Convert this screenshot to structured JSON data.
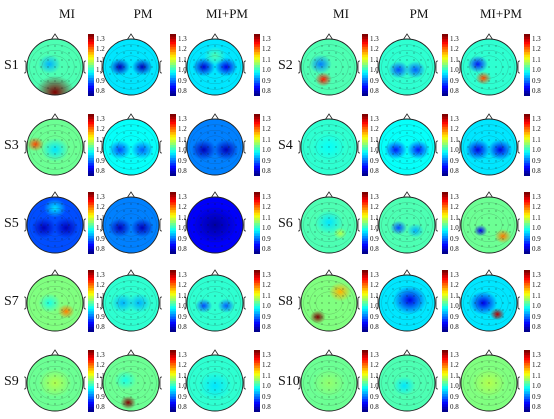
{
  "column_headers": [
    "MI",
    "PM",
    "MI+PM",
    "MI",
    "PM",
    "MI+PM"
  ],
  "colorbar_ticks": [
    "1.3",
    "1.2",
    "1.1",
    "1.0",
    "0.9",
    "0.8"
  ],
  "colormap": [
    "#00008f",
    "#0000ff",
    "#0080ff",
    "#00ffff",
    "#80ff80",
    "#ffff00",
    "#ff8000",
    "#ff0000",
    "#800000"
  ],
  "subjects": [
    {
      "label": "S1",
      "maps": [
        {
          "base": 0.45,
          "blobs": [
            [
              0.5,
              0.95,
              0.35,
              1.0
            ],
            [
              0.4,
              0.45,
              0.2,
              0.3
            ]
          ]
        },
        {
          "base": 0.35,
          "blobs": [
            [
              0.3,
              0.5,
              0.18,
              0.05
            ],
            [
              0.7,
              0.5,
              0.18,
              0.05
            ]
          ]
        },
        {
          "base": 0.35,
          "blobs": [
            [
              0.3,
              0.5,
              0.2,
              0.08
            ],
            [
              0.7,
              0.5,
              0.2,
              0.1
            ],
            [
              0.5,
              0.3,
              0.2,
              0.45
            ]
          ]
        }
      ]
    },
    {
      "label": "S2",
      "maps": [
        {
          "base": 0.45,
          "blobs": [
            [
              0.4,
              0.72,
              0.15,
              0.85
            ],
            [
              0.35,
              0.45,
              0.2,
              0.25
            ]
          ]
        },
        {
          "base": 0.42,
          "blobs": [
            [
              0.35,
              0.55,
              0.18,
              0.2
            ],
            [
              0.65,
              0.55,
              0.18,
              0.22
            ]
          ]
        },
        {
          "base": 0.42,
          "blobs": [
            [
              0.3,
              0.45,
              0.18,
              0.15
            ],
            [
              0.4,
              0.7,
              0.14,
              0.8
            ]
          ]
        }
      ]
    },
    {
      "label": "S3",
      "maps": [
        {
          "base": 0.48,
          "blobs": [
            [
              0.15,
              0.45,
              0.15,
              0.8
            ],
            [
              0.5,
              0.55,
              0.25,
              0.35
            ]
          ]
        },
        {
          "base": 0.38,
          "blobs": [
            [
              0.3,
              0.55,
              0.2,
              0.2
            ],
            [
              0.7,
              0.55,
              0.2,
              0.22
            ]
          ]
        },
        {
          "base": 0.25,
          "blobs": [
            [
              0.3,
              0.55,
              0.22,
              0.05
            ],
            [
              0.7,
              0.55,
              0.22,
              0.05
            ]
          ]
        }
      ]
    },
    {
      "label": "S4",
      "maps": [
        {
          "base": 0.42,
          "blobs": [
            [
              0.5,
              0.5,
              0.3,
              0.38
            ]
          ]
        },
        {
          "base": 0.38,
          "blobs": [
            [
              0.3,
              0.55,
              0.2,
              0.15
            ],
            [
              0.7,
              0.55,
              0.2,
              0.15
            ]
          ]
        },
        {
          "base": 0.35,
          "blobs": [
            [
              0.3,
              0.55,
              0.22,
              0.1
            ],
            [
              0.7,
              0.55,
              0.22,
              0.1
            ]
          ]
        }
      ]
    },
    {
      "label": "S5",
      "maps": [
        {
          "base": 0.2,
          "blobs": [
            [
              0.3,
              0.55,
              0.22,
              0.05
            ],
            [
              0.7,
              0.55,
              0.22,
              0.05
            ],
            [
              0.5,
              0.2,
              0.2,
              0.35
            ]
          ]
        },
        {
          "base": 0.25,
          "blobs": [
            [
              0.3,
              0.55,
              0.2,
              0.05
            ],
            [
              0.7,
              0.55,
              0.2,
              0.05
            ]
          ]
        },
        {
          "base": 0.12,
          "blobs": [
            [
              0.5,
              0.5,
              0.4,
              0.02
            ]
          ]
        }
      ]
    },
    {
      "label": "S6",
      "maps": [
        {
          "base": 0.45,
          "blobs": [
            [
              0.5,
              0.45,
              0.25,
              0.35
            ],
            [
              0.7,
              0.65,
              0.12,
              0.55
            ]
          ]
        },
        {
          "base": 0.45,
          "blobs": [
            [
              0.35,
              0.55,
              0.15,
              0.2
            ],
            [
              0.65,
              0.6,
              0.15,
              0.3
            ]
          ]
        },
        {
          "base": 0.48,
          "blobs": [
            [
              0.35,
              0.6,
              0.12,
              0.1
            ],
            [
              0.75,
              0.7,
              0.15,
              0.75
            ]
          ]
        }
      ]
    },
    {
      "label": "S7",
      "maps": [
        {
          "base": 0.5,
          "blobs": [
            [
              0.7,
              0.65,
              0.15,
              0.75
            ],
            [
              0.4,
              0.5,
              0.2,
              0.4
            ]
          ]
        },
        {
          "base": 0.42,
          "blobs": [
            [
              0.35,
              0.5,
              0.2,
              0.3
            ],
            [
              0.65,
              0.5,
              0.2,
              0.3
            ]
          ]
        },
        {
          "base": 0.42,
          "blobs": [
            [
              0.3,
              0.55,
              0.15,
              0.2
            ],
            [
              0.7,
              0.55,
              0.15,
              0.22
            ]
          ]
        }
      ]
    },
    {
      "label": "S8",
      "maps": [
        {
          "base": 0.5,
          "blobs": [
            [
              0.3,
              0.75,
              0.14,
              1.0
            ],
            [
              0.7,
              0.3,
              0.2,
              0.7
            ]
          ]
        },
        {
          "base": 0.35,
          "blobs": [
            [
              0.55,
              0.45,
              0.3,
              0.1
            ]
          ]
        },
        {
          "base": 0.35,
          "blobs": [
            [
              0.4,
              0.5,
              0.25,
              0.1
            ],
            [
              0.65,
              0.7,
              0.13,
              0.95
            ]
          ]
        }
      ]
    },
    {
      "label": "S9",
      "maps": [
        {
          "base": 0.48,
          "blobs": [
            [
              0.5,
              0.5,
              0.3,
              0.55
            ]
          ]
        },
        {
          "base": 0.48,
          "blobs": [
            [
              0.45,
              0.85,
              0.14,
              1.0
            ],
            [
              0.4,
              0.45,
              0.2,
              0.4
            ]
          ]
        },
        {
          "base": 0.42,
          "blobs": [
            [
              0.5,
              0.55,
              0.3,
              0.35
            ]
          ]
        }
      ]
    },
    {
      "label": "S10",
      "maps": [
        {
          "base": 0.48,
          "blobs": [
            [
              0.5,
              0.5,
              0.3,
              0.52
            ]
          ]
        },
        {
          "base": 0.45,
          "blobs": [
            [
              0.45,
              0.55,
              0.2,
              0.35
            ]
          ]
        },
        {
          "base": 0.5,
          "blobs": [
            [
              0.5,
              0.5,
              0.3,
              0.55
            ]
          ]
        }
      ]
    }
  ]
}
